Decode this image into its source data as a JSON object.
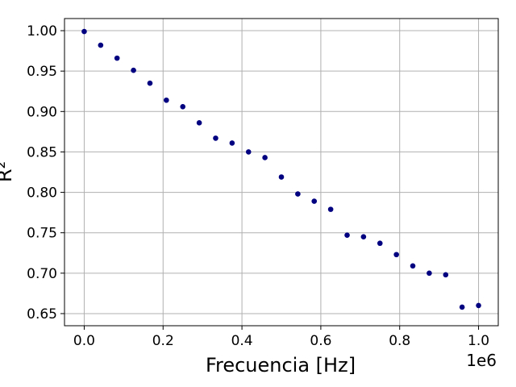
{
  "chart_data": {
    "type": "scatter",
    "title": "",
    "xlabel": "Frecuencia [Hz]",
    "ylabel": "R²",
    "x_offset_text": "1e6",
    "xlim": [
      -0.05,
      1.05
    ],
    "ylim": [
      0.635,
      1.015
    ],
    "x_ticks": [
      0.0,
      0.2,
      0.4,
      0.6,
      0.8,
      1.0
    ],
    "x_tick_labels": [
      "0.0",
      "0.2",
      "0.4",
      "0.6",
      "0.8",
      "1.0"
    ],
    "y_ticks": [
      0.65,
      0.7,
      0.75,
      0.8,
      0.85,
      0.9,
      0.95,
      1.0
    ],
    "y_tick_labels": [
      "0.65",
      "0.70",
      "0.75",
      "0.80",
      "0.85",
      "0.90",
      "0.95",
      "1.00"
    ],
    "grid": true,
    "marker_color": "#000080",
    "series": [
      {
        "x": [
          0.0,
          0.0417,
          0.0833,
          0.125,
          0.1667,
          0.2083,
          0.25,
          0.2917,
          0.3333,
          0.375,
          0.4167,
          0.4583,
          0.5,
          0.5417,
          0.5833,
          0.625,
          0.6667,
          0.7083,
          0.75,
          0.7917,
          0.8333,
          0.875,
          0.9167,
          0.9583,
          1.0
        ],
        "y": [
          0.999,
          0.982,
          0.966,
          0.951,
          0.935,
          0.914,
          0.906,
          0.886,
          0.867,
          0.861,
          0.85,
          0.843,
          0.819,
          0.798,
          0.789,
          0.779,
          0.747,
          0.745,
          0.737,
          0.723,
          0.709,
          0.7,
          0.698,
          0.658,
          0.66
        ]
      }
    ]
  }
}
